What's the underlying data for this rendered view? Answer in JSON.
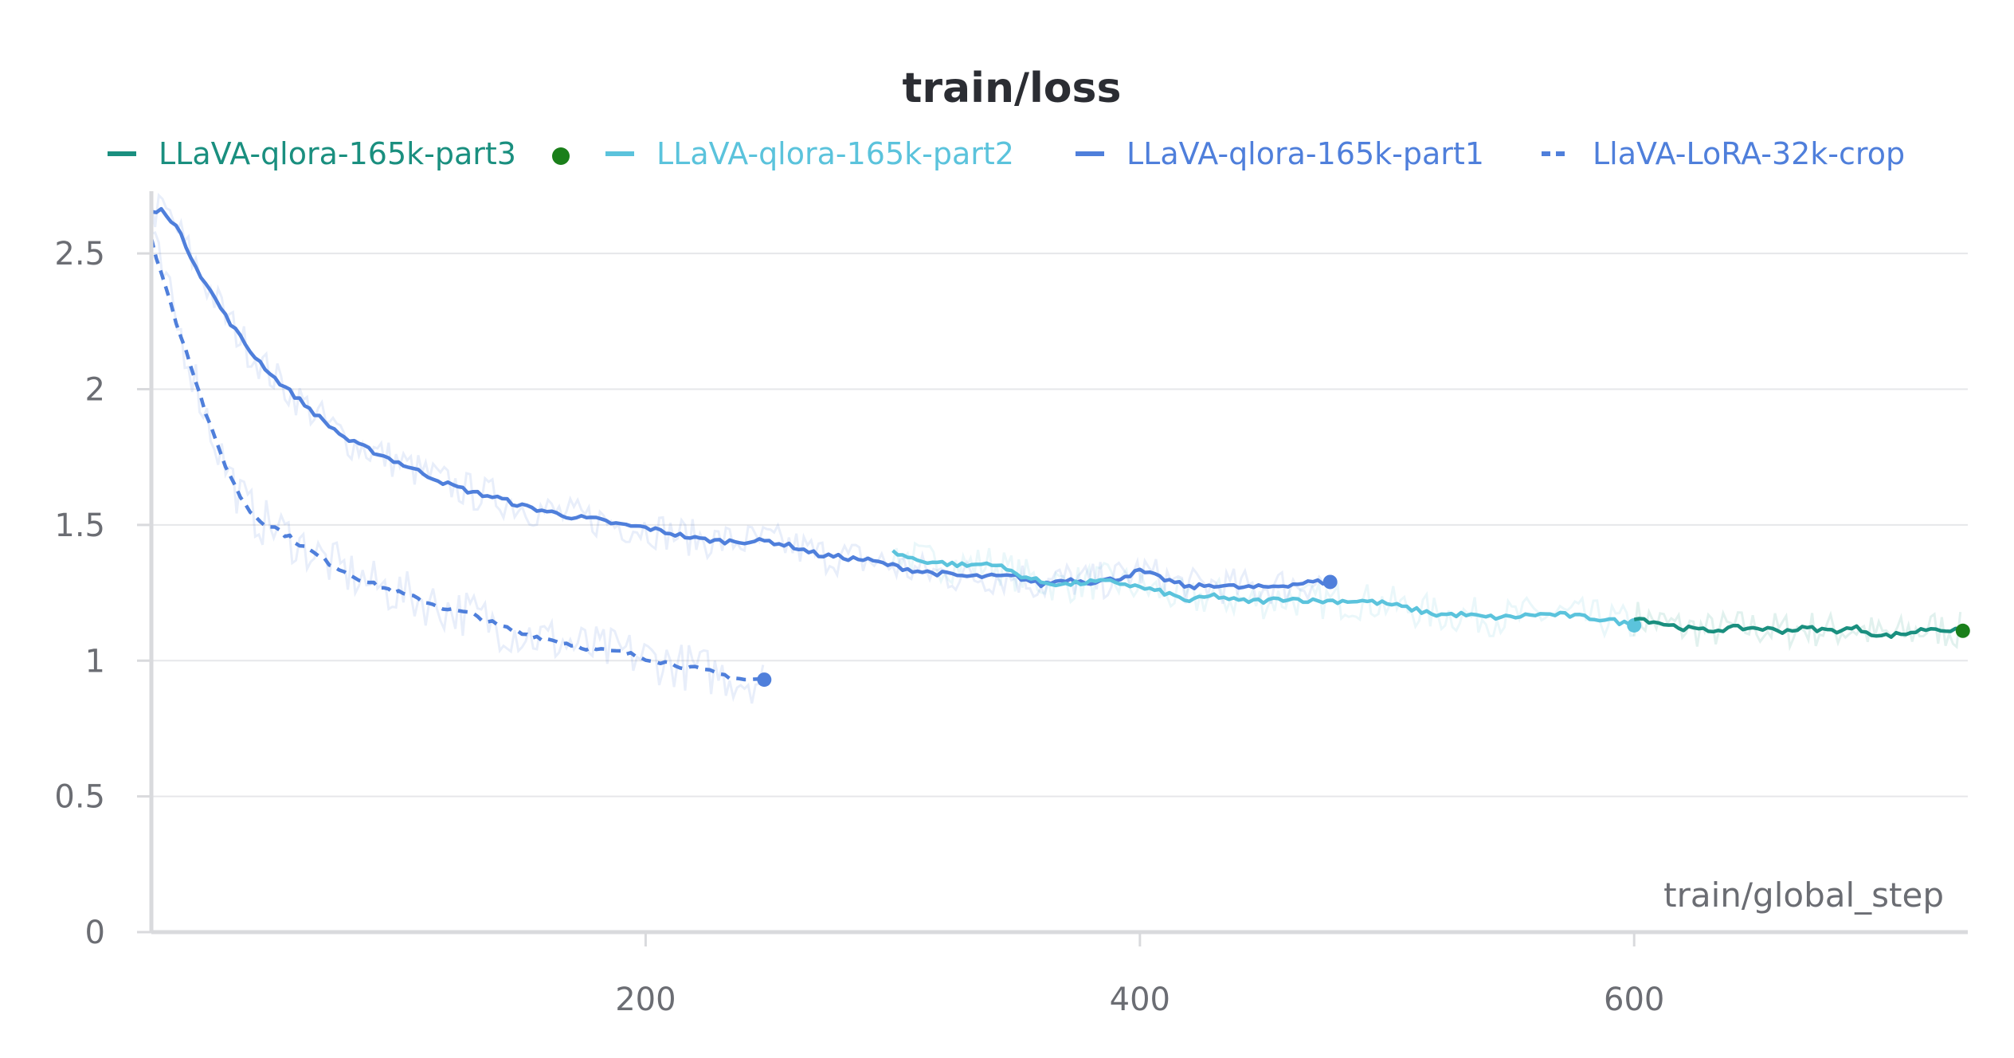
{
  "chart_data": {
    "type": "line",
    "title": "train/loss",
    "xlabel": "train/global_step",
    "ylabel": "",
    "xlim": [
      0,
      735
    ],
    "ylim": [
      0,
      2.7
    ],
    "x_ticks": [
      200,
      400,
      600
    ],
    "y_ticks": [
      {
        "value": 0,
        "label": "0"
      },
      {
        "value": 0.5,
        "label": "0.5"
      },
      {
        "value": 1,
        "label": "1"
      },
      {
        "value": 1.5,
        "label": "1.5"
      },
      {
        "value": 2,
        "label": "2"
      },
      {
        "value": 2.5,
        "label": "2.5"
      }
    ],
    "grid": true,
    "legend_position": "top",
    "series": [
      {
        "name": "LLaVA-qlora-165k-part3",
        "color": "#1a8f7f",
        "dashed": false,
        "end_marker_color": "#1a7f1a",
        "x": [
          600,
          610,
          620,
          630,
          640,
          650,
          660,
          670,
          680,
          690,
          700,
          710,
          720,
          730,
          733
        ],
        "y": [
          1.16,
          1.14,
          1.12,
          1.11,
          1.12,
          1.12,
          1.11,
          1.12,
          1.11,
          1.12,
          1.09,
          1.1,
          1.12,
          1.11,
          1.11
        ]
      },
      {
        "name": "LLaVA-qlora-165k-part2",
        "color": "#5bc3dc",
        "dashed": false,
        "end_marker_color": "#5bc3dc",
        "x": [
          300,
          310,
          320,
          330,
          340,
          350,
          360,
          370,
          380,
          390,
          400,
          410,
          420,
          430,
          440,
          450,
          460,
          470,
          480,
          490,
          500,
          510,
          520,
          530,
          540,
          550,
          560,
          570,
          580,
          590,
          600
        ],
        "y": [
          1.4,
          1.37,
          1.36,
          1.35,
          1.36,
          1.32,
          1.29,
          1.28,
          1.29,
          1.29,
          1.27,
          1.25,
          1.22,
          1.24,
          1.22,
          1.22,
          1.23,
          1.22,
          1.22,
          1.22,
          1.21,
          1.19,
          1.17,
          1.17,
          1.16,
          1.16,
          1.17,
          1.17,
          1.16,
          1.15,
          1.13
        ]
      },
      {
        "name": "LLaVA-qlora-165k-part1",
        "color": "#4f7fdb",
        "dashed": false,
        "end_marker_color": "#4f7fdb",
        "x": [
          0,
          5,
          10,
          20,
          30,
          40,
          50,
          60,
          70,
          80,
          90,
          100,
          110,
          120,
          130,
          140,
          150,
          160,
          170,
          180,
          190,
          200,
          210,
          220,
          230,
          240,
          250,
          260,
          270,
          280,
          290,
          300,
          310,
          320,
          330,
          340,
          350,
          360,
          370,
          380,
          390,
          400,
          410,
          420,
          430,
          440,
          450,
          460,
          470,
          477
        ],
        "y": [
          2.65,
          2.66,
          2.6,
          2.42,
          2.27,
          2.14,
          2.04,
          1.96,
          1.88,
          1.81,
          1.77,
          1.73,
          1.69,
          1.65,
          1.62,
          1.6,
          1.57,
          1.55,
          1.53,
          1.52,
          1.5,
          1.49,
          1.47,
          1.45,
          1.44,
          1.44,
          1.44,
          1.42,
          1.39,
          1.38,
          1.37,
          1.35,
          1.33,
          1.32,
          1.31,
          1.31,
          1.31,
          1.28,
          1.3,
          1.29,
          1.3,
          1.33,
          1.3,
          1.27,
          1.28,
          1.27,
          1.27,
          1.28,
          1.29,
          1.29
        ]
      },
      {
        "name": "LlaVA-LoRA-32k-crop",
        "color": "#4f7fdb",
        "dashed": true,
        "end_marker_color": "#4f7fdb",
        "x": [
          0,
          5,
          10,
          15,
          20,
          25,
          30,
          35,
          40,
          45,
          50,
          60,
          70,
          80,
          90,
          100,
          110,
          120,
          130,
          140,
          150,
          160,
          170,
          180,
          190,
          200,
          210,
          220,
          230,
          240,
          248
        ],
        "y": [
          2.55,
          2.4,
          2.25,
          2.12,
          1.97,
          1.83,
          1.72,
          1.62,
          1.55,
          1.51,
          1.49,
          1.43,
          1.37,
          1.32,
          1.28,
          1.25,
          1.22,
          1.19,
          1.17,
          1.13,
          1.1,
          1.08,
          1.06,
          1.04,
          1.03,
          1.01,
          0.99,
          0.97,
          0.95,
          0.93,
          0.93
        ]
      }
    ]
  }
}
